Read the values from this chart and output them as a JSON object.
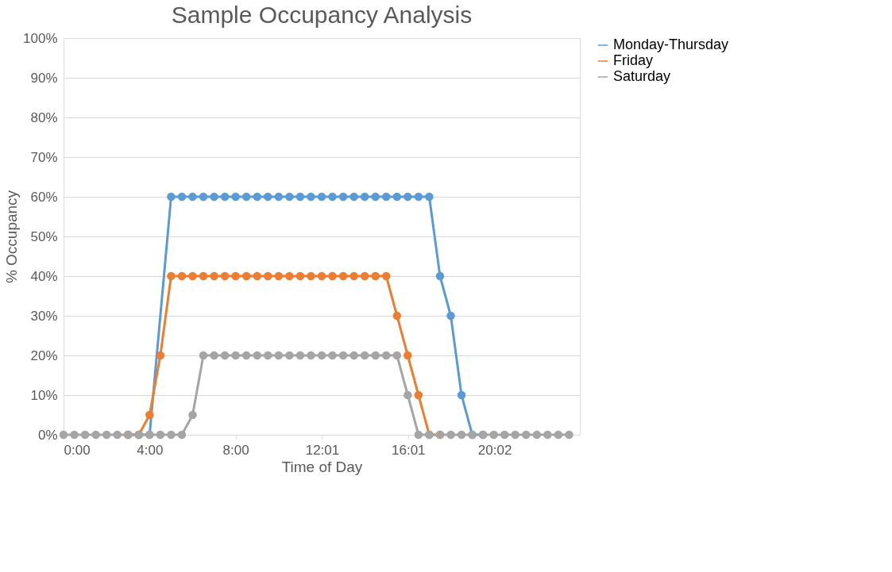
{
  "chart_data": {
    "type": "line",
    "title": "Sample Occupancy Analysis",
    "xlabel": "Time of Day",
    "ylabel": "% Occupancy",
    "x": [
      0,
      0.5,
      1,
      1.5,
      2,
      2.5,
      3,
      3.5,
      4,
      4.5,
      5,
      5.5,
      6,
      6.5,
      7,
      7.5,
      8,
      8.5,
      9,
      9.5,
      10,
      10.5,
      11,
      11.5,
      12,
      12.5,
      13,
      13.5,
      14,
      14.5,
      15,
      15.5,
      16,
      16.5,
      17,
      17.5,
      18,
      18.5,
      19,
      19.5,
      20,
      20.5,
      21,
      21.5,
      22,
      22.5,
      23,
      23.5
    ],
    "series": [
      {
        "name": "Monday-Thursday",
        "color": "#5b9bd5",
        "values": [
          null,
          null,
          null,
          null,
          null,
          null,
          0,
          0,
          0,
          null,
          60,
          60,
          60,
          60,
          60,
          60,
          60,
          60,
          60,
          60,
          60,
          60,
          60,
          60,
          60,
          60,
          60,
          60,
          60,
          60,
          60,
          60,
          60,
          60,
          60,
          40,
          30,
          10,
          0,
          0,
          null,
          null,
          null,
          null,
          null,
          null,
          null,
          null
        ]
      },
      {
        "name": "Friday",
        "color": "#ed7d31",
        "values": [
          null,
          null,
          null,
          null,
          null,
          null,
          0,
          0,
          5,
          20,
          40,
          40,
          40,
          40,
          40,
          40,
          40,
          40,
          40,
          40,
          40,
          40,
          40,
          40,
          40,
          40,
          40,
          40,
          40,
          40,
          40,
          30,
          20,
          10,
          0,
          0,
          null,
          null,
          null,
          null,
          null,
          null,
          null,
          null,
          null,
          null,
          null,
          null
        ]
      },
      {
        "name": "Saturday",
        "color": "#a5a5a5",
        "values": [
          0,
          0,
          0,
          0,
          0,
          0,
          0,
          0,
          0,
          0,
          0,
          0,
          5,
          20,
          20,
          20,
          20,
          20,
          20,
          20,
          20,
          20,
          20,
          20,
          20,
          20,
          20,
          20,
          20,
          20,
          20,
          20,
          10,
          0,
          0,
          0,
          0,
          0,
          0,
          0,
          0,
          0,
          0,
          0,
          0,
          0,
          0,
          0
        ]
      }
    ],
    "xlim": [
      0,
      24
    ],
    "xticks": [
      {
        "value": 0,
        "label": "0:00"
      },
      {
        "value": 4,
        "label": "4:00"
      },
      {
        "value": 8,
        "label": "8:00"
      },
      {
        "value": 12.0167,
        "label": "12:01"
      },
      {
        "value": 16.0167,
        "label": "16:01"
      },
      {
        "value": 20.0333,
        "label": "20:02"
      }
    ],
    "ylim": [
      0,
      100
    ],
    "yticks": [
      {
        "value": 0,
        "label": "0%"
      },
      {
        "value": 10,
        "label": "10%"
      },
      {
        "value": 20,
        "label": "20%"
      },
      {
        "value": 30,
        "label": "30%"
      },
      {
        "value": 40,
        "label": "40%"
      },
      {
        "value": 50,
        "label": "50%"
      },
      {
        "value": 60,
        "label": "60%"
      },
      {
        "value": 70,
        "label": "70%"
      },
      {
        "value": 80,
        "label": "80%"
      },
      {
        "value": 90,
        "label": "90%"
      },
      {
        "value": 100,
        "label": "100%"
      }
    ],
    "grid": "y",
    "legend": "right",
    "marker": "circle",
    "line_style": "solid"
  }
}
